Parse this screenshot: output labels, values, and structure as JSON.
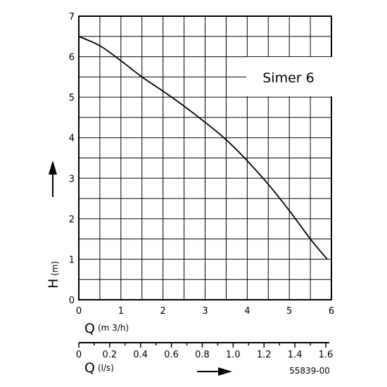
{
  "chart_data": {
    "type": "line",
    "title": "Simer 6",
    "figure_code": "55839-00",
    "xlabel": {
      "letter": "Q",
      "unit": "(m 3/h)"
    },
    "ylabel": {
      "letter": "H",
      "unit": "(m)"
    },
    "x2label": {
      "letter": "Q",
      "unit": "(l/s)"
    },
    "xlim": [
      0,
      6
    ],
    "ylim": [
      0,
      7
    ],
    "x2lim": [
      0,
      1.6
    ],
    "x_ticks": [
      "0",
      "1",
      "2",
      "3",
      "4",
      "5",
      "6"
    ],
    "y_ticks": [
      "0",
      "1",
      "2",
      "3",
      "4",
      "5",
      "6",
      "7"
    ],
    "x2_ticks": [
      "0",
      "0.2",
      "0.4",
      "0.6",
      "0.8",
      "1.0",
      "1.2",
      "1.4",
      "1.6"
    ],
    "grid": true,
    "series": [
      {
        "x": [
          0,
          0.5,
          1.0,
          1.5,
          2.0,
          2.5,
          3.0,
          3.5,
          4.0,
          4.5,
          5.0,
          5.5,
          5.9
        ],
        "y": [
          6.5,
          6.27,
          5.9,
          5.5,
          5.15,
          4.78,
          4.38,
          3.95,
          3.43,
          2.85,
          2.2,
          1.5,
          1.0
        ]
      }
    ]
  }
}
